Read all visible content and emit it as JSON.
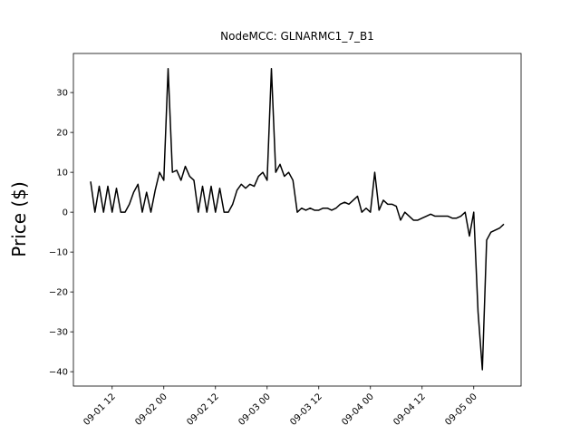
{
  "chart_data": {
    "type": "line",
    "title": "NodeMCC: GLNARMC1_7_B1",
    "y_label": "Price ($)",
    "x": [
      "09-01 07",
      "09-01 08",
      "09-01 09",
      "09-01 10",
      "09-01 11",
      "09-01 12",
      "09-01 13",
      "09-01 14",
      "09-01 15",
      "09-01 16",
      "09-01 17",
      "09-01 18",
      "09-01 19",
      "09-01 20",
      "09-01 21",
      "09-01 22",
      "09-01 23",
      "09-02 00",
      "09-02 01",
      "09-02 02",
      "09-02 03",
      "09-02 04",
      "09-02 05",
      "09-02 06",
      "09-02 07",
      "09-02 08",
      "09-02 09",
      "09-02 10",
      "09-02 11",
      "09-02 12",
      "09-02 13",
      "09-02 14",
      "09-02 15",
      "09-02 16",
      "09-02 17",
      "09-02 18",
      "09-02 19",
      "09-02 20",
      "09-02 21",
      "09-02 22",
      "09-02 23",
      "09-03 00",
      "09-03 01",
      "09-03 02",
      "09-03 03",
      "09-03 04",
      "09-03 05",
      "09-03 06",
      "09-03 07",
      "09-03 08",
      "09-03 09",
      "09-03 10",
      "09-03 11",
      "09-03 12",
      "09-03 13",
      "09-03 14",
      "09-03 15",
      "09-03 16",
      "09-03 17",
      "09-03 18",
      "09-03 19",
      "09-03 20",
      "09-03 21",
      "09-03 22",
      "09-03 23",
      "09-04 00",
      "09-04 01",
      "09-04 02",
      "09-04 03",
      "09-04 04",
      "09-04 05",
      "09-04 06",
      "09-04 07",
      "09-04 08",
      "09-04 09",
      "09-04 10",
      "09-04 11",
      "09-04 12",
      "09-04 13",
      "09-04 14",
      "09-04 15",
      "09-04 16",
      "09-04 17",
      "09-04 18",
      "09-04 19",
      "09-04 20",
      "09-04 21",
      "09-04 22",
      "09-04 23",
      "09-05 00",
      "09-05 01",
      "09-05 02",
      "09-05 03",
      "09-05 04",
      "09-05 05",
      "09-05 06",
      "09-05 07"
    ],
    "series": [
      {
        "color": "#000000",
        "values": [
          7.7,
          0,
          6.5,
          0,
          6.5,
          0,
          6,
          0,
          0,
          2,
          5,
          7,
          0,
          5,
          0,
          5.5,
          10,
          8,
          36,
          10,
          10.5,
          8,
          11.5,
          9,
          8,
          0,
          6.5,
          0,
          6.5,
          0,
          6,
          0,
          0,
          2,
          5.5,
          7,
          6,
          7,
          6.5,
          9,
          10,
          8,
          36,
          10,
          12,
          9,
          10,
          8,
          0,
          1,
          0.5,
          1,
          0.5,
          0.5,
          1,
          1,
          0.5,
          1,
          2,
          2.5,
          2,
          3,
          4,
          0,
          1,
          0,
          10,
          0.5,
          3,
          2,
          2,
          1.5,
          -2,
          0,
          -1,
          -2,
          -2,
          -1.5,
          -1,
          -0.5,
          -1,
          -1,
          -1,
          -1,
          -1.5,
          -1.5,
          -1,
          0,
          -6,
          0,
          -25,
          -39.5,
          -7,
          -5,
          -4.5,
          -4,
          -3
        ]
      }
    ],
    "xlim": [
      "09-01 03",
      "09-05 11"
    ],
    "xticks": [
      "09-01 12",
      "09-02 00",
      "09-02 12",
      "09-03 00",
      "09-03 12",
      "09-04 00",
      "09-04 12",
      "09-05 00"
    ],
    "ylim": [
      -43.6,
      39.8
    ],
    "yticks": [
      {
        "value": -40,
        "label": "−40"
      },
      {
        "value": -30,
        "label": "−30"
      },
      {
        "value": -20,
        "label": "−20"
      },
      {
        "value": -10,
        "label": "−10"
      },
      0,
      10,
      20,
      30
    ]
  }
}
